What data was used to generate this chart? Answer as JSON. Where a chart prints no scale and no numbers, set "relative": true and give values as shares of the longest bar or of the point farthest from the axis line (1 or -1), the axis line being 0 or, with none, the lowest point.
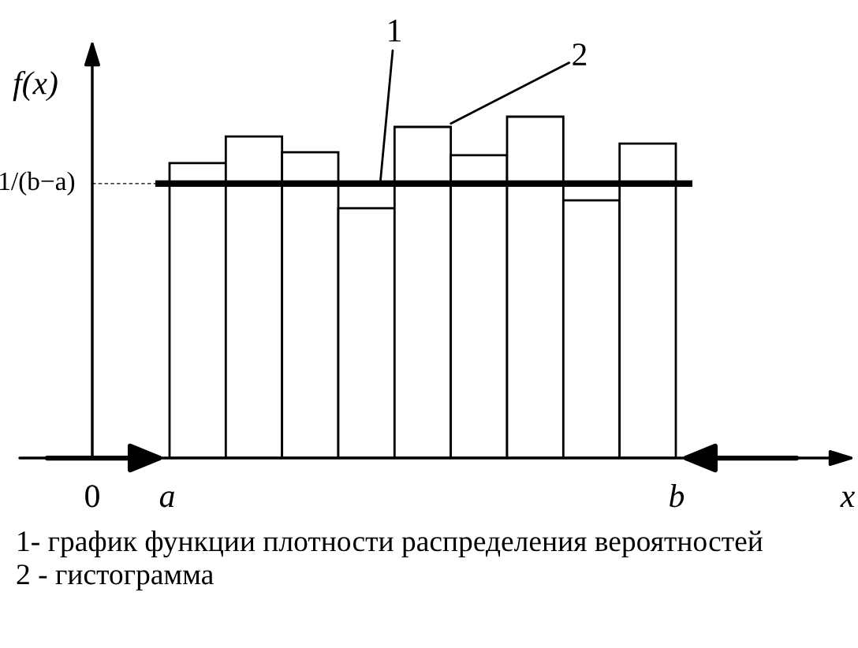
{
  "chart_data": {
    "type": "bar",
    "relative": true,
    "categories": [
      null,
      null,
      null,
      null,
      null,
      null,
      null,
      null,
      null
    ],
    "values": [
      0.864,
      0.942,
      0.896,
      0.732,
      0.97,
      0.887,
      1,
      0.755,
      0.921
    ],
    "color": "#ffffff",
    "xlabel": "x",
    "ylabel": "f(x)",
    "ref_lines": [
      {
        "axis": "y",
        "value": 0.804,
        "label": "1/(b−a)",
        "color": "#000000"
      }
    ],
    "grid": false,
    "annotations": [
      "1",
      "2",
      "0",
      "a",
      "b",
      "1- график функции плотности распределения вероятностей",
      "2 - гистограмма"
    ]
  }
}
